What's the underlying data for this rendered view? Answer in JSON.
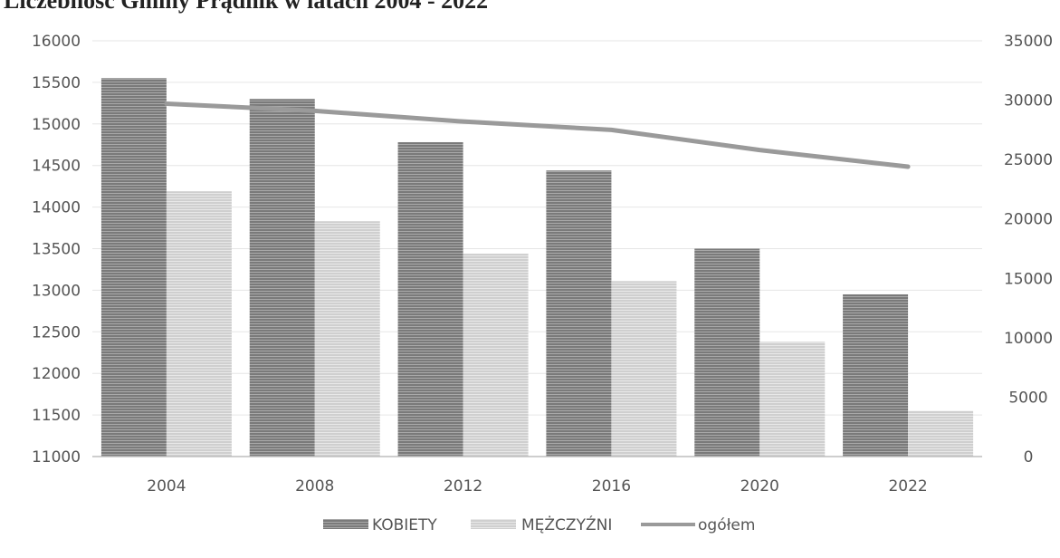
{
  "chart_data": {
    "type": "bar",
    "title": "Liczebność Gminy Prądnik w latach 2004 - 2022",
    "categories": [
      "2004",
      "2008",
      "2012",
      "2016",
      "2020",
      "2022"
    ],
    "series": [
      {
        "name": "KOBIETY",
        "type": "bar",
        "axis": "left",
        "color": "#8e8e8e",
        "values": [
          15550,
          15300,
          14780,
          14440,
          13500,
          12950
        ]
      },
      {
        "name": "MĘŻCZYŹNI",
        "type": "bar",
        "axis": "left",
        "color": "#d6d6d6",
        "values": [
          14190,
          13830,
          13440,
          13110,
          12380,
          11550
        ]
      },
      {
        "name": "ogółem",
        "type": "line",
        "axis": "right",
        "color": "#9a9a9a",
        "values": [
          29700,
          29100,
          28200,
          27500,
          25800,
          24400
        ]
      }
    ],
    "y_left": {
      "min": 11000,
      "max": 16000,
      "ticks": [
        "11000",
        "11500",
        "12000",
        "12500",
        "13000",
        "13500",
        "14000",
        "14500",
        "15000",
        "15500",
        "16000"
      ]
    },
    "y_right": {
      "min": 0,
      "max": 35000,
      "ticks": [
        "0",
        "5000",
        "10000",
        "15000",
        "20000",
        "25000",
        "30000",
        "35000"
      ]
    },
    "grid": true,
    "legend_position": "bottom"
  }
}
